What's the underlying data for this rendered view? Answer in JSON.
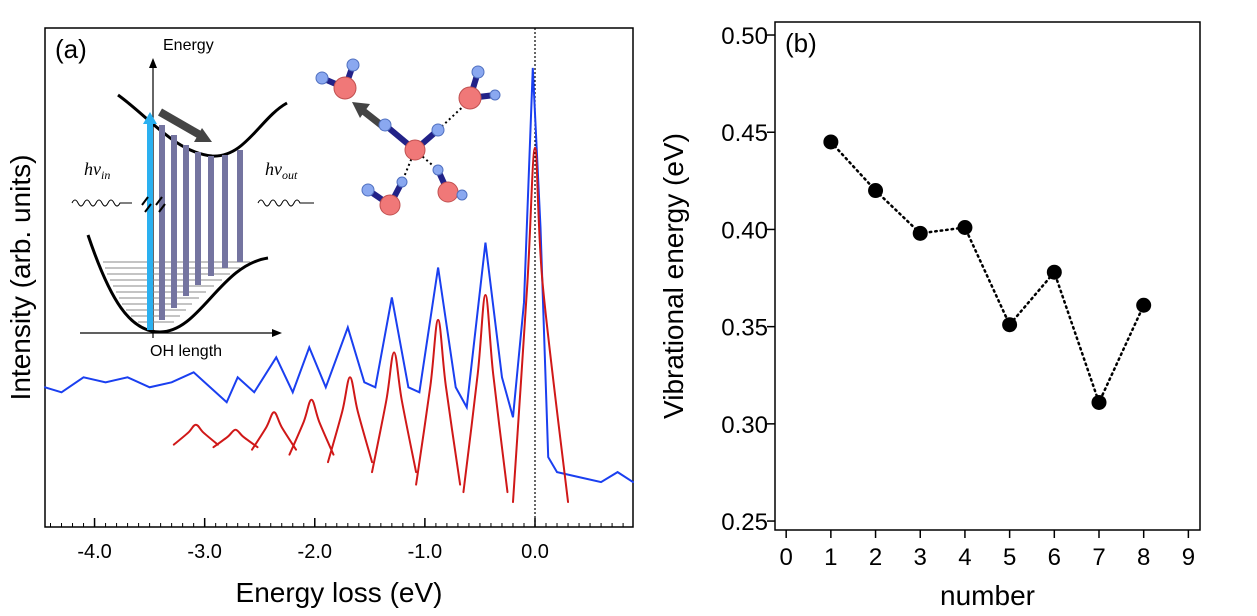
{
  "chart_data": [
    {
      "type": "line",
      "panel_label": "(a)",
      "x_label": "Energy loss (eV)",
      "y_label": "Intensity (arb. units)",
      "xlim": [
        -4.45,
        0.89
      ],
      "ylim": [
        0,
        100
      ],
      "xticks": [
        {
          "value": -4,
          "label": "-4.0"
        },
        {
          "value": -3,
          "label": "-3.0"
        },
        {
          "value": -2,
          "label": "-2.0"
        },
        {
          "value": -1,
          "label": "-1.0"
        },
        {
          "value": 0,
          "label": "0.0"
        }
      ],
      "xminor": 0.1,
      "vline": 0,
      "inset": {
        "y_label": "Energy",
        "x_label": "OH length",
        "photon_in": [
          "hν",
          "in"
        ],
        "photon_out": [
          "hν",
          "out"
        ]
      },
      "series": [
        {
          "color": "#1a3ff0",
          "x": [
            -4.45,
            -4.3,
            -4.1,
            -3.9,
            -3.7,
            -3.5,
            -3.3,
            -3.1,
            -2.9,
            -2.8,
            -2.7,
            -2.55,
            -2.35,
            -2.2,
            -2.05,
            -1.9,
            -1.7,
            -1.55,
            -1.45,
            -1.3,
            -1.15,
            -1.05,
            -0.88,
            -0.72,
            -0.62,
            -0.45,
            -0.3,
            -0.2,
            -0.1,
            -0.02,
            0.05,
            0.12,
            0.2,
            0.4,
            0.6,
            0.75,
            0.89
          ],
          "values": [
            28,
            27,
            30,
            29,
            30,
            28,
            29,
            31,
            27,
            25,
            30,
            27,
            34,
            27,
            36,
            28,
            40,
            29,
            28,
            46,
            28,
            27,
            52,
            28,
            24,
            57,
            30,
            22,
            45,
            92,
            60,
            14,
            11,
            10,
            9,
            11,
            9
          ]
        },
        {
          "color": "#d01818",
          "smooth": true,
          "x": [
            -3.28,
            -3.15,
            -3.08,
            -3.01,
            -2.88,
            null,
            -2.92,
            -2.79,
            -2.72,
            -2.65,
            -2.52,
            null,
            -2.57,
            -2.44,
            -2.37,
            -2.3,
            -2.17,
            null,
            -2.23,
            -2.1,
            -2.03,
            -1.96,
            -1.83,
            null,
            -1.88,
            -1.75,
            -1.68,
            -1.61,
            -1.48,
            null,
            -1.48,
            -1.35,
            -1.28,
            -1.21,
            -1.08,
            null,
            -1.08,
            -0.95,
            -0.88,
            -0.81,
            -0.68,
            null,
            -0.65,
            -0.52,
            -0.45,
            -0.38,
            -0.25,
            null,
            -0.2,
            -0.07,
            0,
            0.07,
            0.3
          ],
          "values": [
            16.5,
            18.9,
            20.5,
            18.9,
            16.5,
            null,
            16,
            18.1,
            19.5,
            18.1,
            16,
            null,
            15.5,
            20,
            23,
            20,
            15.5,
            null,
            14.5,
            21.1,
            25.5,
            21.1,
            14.5,
            null,
            13,
            23.2,
            30,
            23.2,
            13,
            null,
            11,
            25.4,
            35,
            25.4,
            11,
            null,
            8.5,
            28.3,
            41.5,
            28.3,
            8.5,
            null,
            7,
            30.7,
            46.5,
            30.7,
            7,
            null,
            5,
            48.6,
            76,
            48.6,
            5
          ]
        }
      ]
    },
    {
      "type": "line",
      "panel_label": "(b)",
      "x_label": "number",
      "y_label": "Vibrational energy (eV)",
      "xlim": [
        -0.25,
        9.26
      ],
      "ylim": [
        0.2454,
        0.5067
      ],
      "xticks": [
        0,
        1,
        2,
        3,
        4,
        5,
        6,
        7,
        8,
        9
      ],
      "yticks": [
        0.25,
        {
          "value": 0.3,
          "label": "0.30"
        },
        0.35,
        {
          "value": 0.4,
          "label": "0.40"
        },
        0.45,
        {
          "value": 0.5,
          "label": "0.50"
        }
      ],
      "markers": true,
      "linestyle": "dotted",
      "series": [
        {
          "color": "#000000",
          "x": [
            1,
            2,
            3,
            4,
            5,
            6,
            7,
            8
          ],
          "values": [
            0.445,
            0.42,
            0.398,
            0.401,
            0.351,
            0.378,
            0.311,
            0.361
          ]
        }
      ]
    }
  ]
}
